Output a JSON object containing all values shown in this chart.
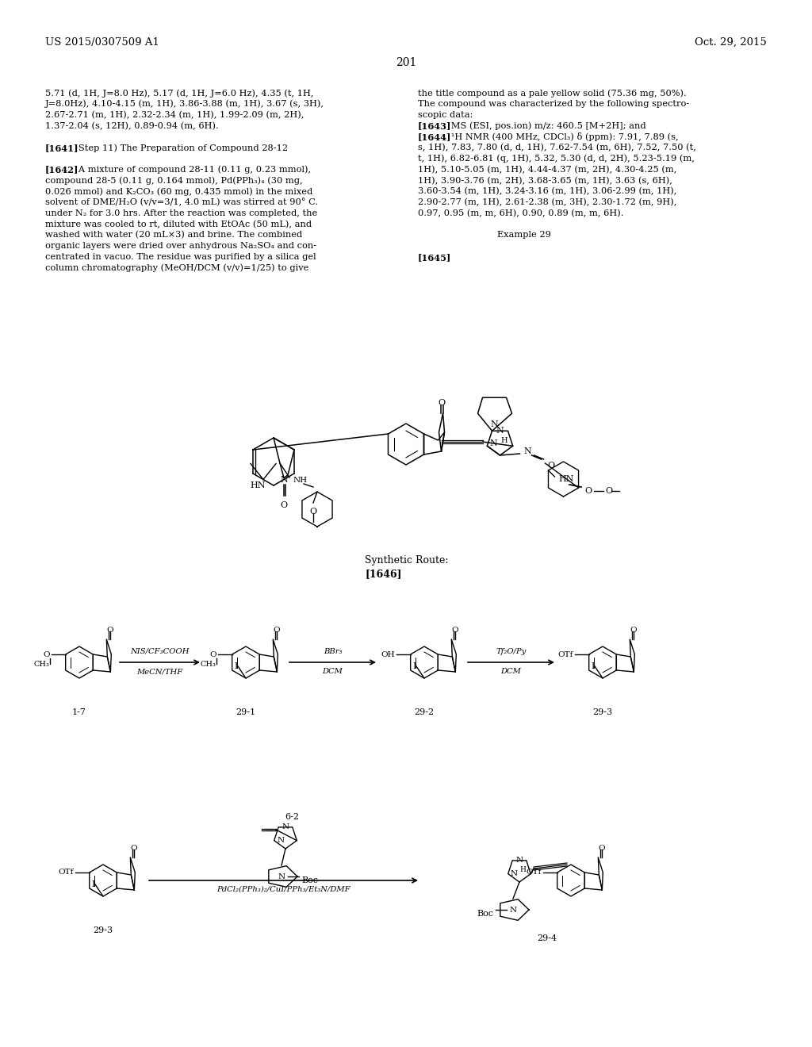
{
  "background_color": "#ffffff",
  "header_left": "US 2015/0307509 A1",
  "header_right": "Oct. 29, 2015",
  "page_number": "201",
  "left_col_lines": [
    [
      "",
      "5.71 (d, 1H, J=8.0 Hz), 5.17 (d, 1H, J=6.0 Hz), 4.35 (t, 1H,"
    ],
    [
      "",
      "J=8.0Hz), 4.10-4.15 (m, 1H), 3.86-3.88 (m, 1H), 3.67 (s, 3H),"
    ],
    [
      "",
      "2.67-2.71 (m, 1H), 2.32-2.34 (m, 1H), 1.99-2.09 (m, 2H),"
    ],
    [
      "",
      "1.37-2.04 (s, 12H), 0.89-0.94 (m, 6H)."
    ],
    [
      "",
      ""
    ],
    [
      "[1641]",
      "   Step 11) The Preparation of Compound 28-12"
    ],
    [
      "",
      ""
    ],
    [
      "[1642]",
      "   A mixture of compound 28-11 (0.11 g, 0.23 mmol),"
    ],
    [
      "",
      "compound 28-5 (0.11 g, 0.164 mmol), Pd(PPh₃)₄ (30 mg,"
    ],
    [
      "",
      "0.026 mmol) and K₂CO₃ (60 mg, 0.435 mmol) in the mixed"
    ],
    [
      "",
      "solvent of DME/H₂O (v/v=3/1, 4.0 mL) was stirred at 90° C."
    ],
    [
      "",
      "under N₂ for 3.0 hrs. After the reaction was completed, the"
    ],
    [
      "",
      "mixture was cooled to rt, diluted with EtOAc (50 mL), and"
    ],
    [
      "",
      "washed with water (20 mL×3) and brine. The combined"
    ],
    [
      "",
      "organic layers were dried over anhydrous Na₂SO₄ and con-"
    ],
    [
      "",
      "centrated in vacuo. The residue was purified by a silica gel"
    ],
    [
      "",
      "column chromatography (MeOH/DCM (v/v)=1/25) to give"
    ]
  ],
  "right_col_lines": [
    [
      "",
      "the title compound as a pale yellow solid (75.36 mg, 50%)."
    ],
    [
      "",
      "The compound was characterized by the following spectro-"
    ],
    [
      "",
      "scopic data:"
    ],
    [
      "[1643]",
      "   MS (ESI, pos.ion) m/z: 460.5 [M+2H]; and"
    ],
    [
      "[1644]",
      "   ¹H NMR (400 MHz, CDCl₃) δ (ppm): 7.91, 7.89 (s,"
    ],
    [
      "",
      "s, 1H), 7.83, 7.80 (d, d, 1H), 7.62-7.54 (m, 6H), 7.52, 7.50 (t,"
    ],
    [
      "",
      "t, 1H), 6.82-6.81 (q, 1H), 5.32, 5.30 (d, d, 2H), 5.23-5.19 (m,"
    ],
    [
      "",
      "1H), 5.10-5.05 (m, 1H), 4.44-4.37 (m, 2H), 4.30-4.25 (m,"
    ],
    [
      "",
      "1H), 3.90-3.76 (m, 2H), 3.68-3.65 (m, 1H), 3.63 (s, 6H),"
    ],
    [
      "",
      "3.60-3.54 (m, 1H), 3.24-3.16 (m, 1H), 3.06-2.99 (m, 1H),"
    ],
    [
      "",
      "2.90-2.77 (m, 1H), 2.61-2.38 (m, 3H), 2.30-1.72 (m, 9H),"
    ],
    [
      "",
      "0.97, 0.95 (m, m, 6H), 0.90, 0.89 (m, m, 6H)."
    ],
    [
      "",
      ""
    ],
    [
      "",
      "Example 29"
    ],
    [
      "",
      ""
    ],
    [
      "[1645]",
      ""
    ]
  ]
}
